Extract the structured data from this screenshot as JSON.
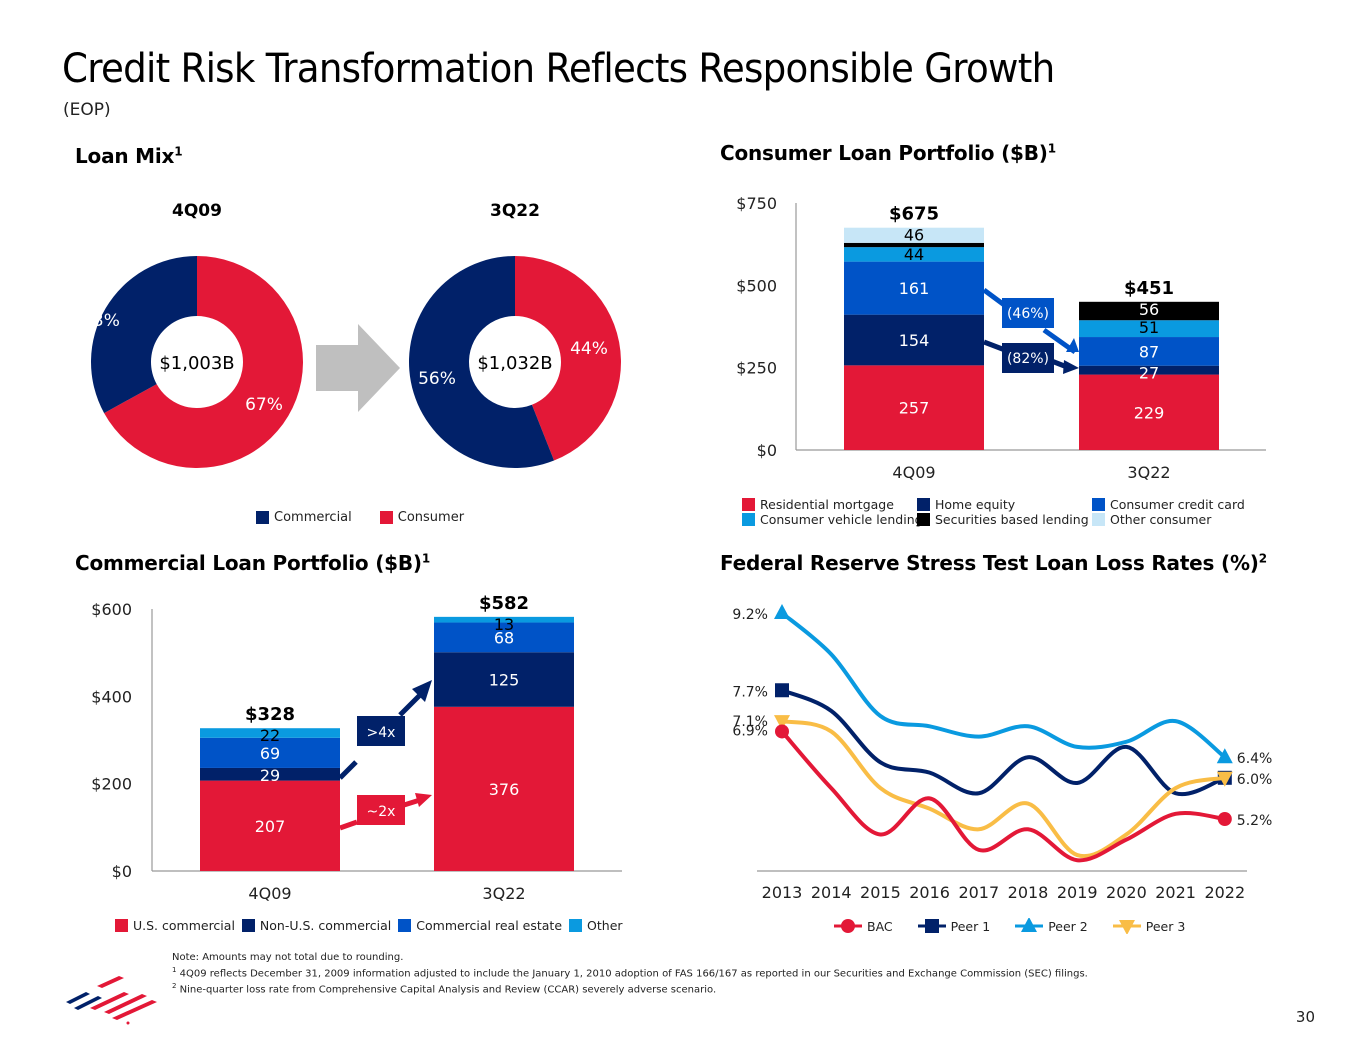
{
  "page": {
    "title": "Credit Risk Transformation Reflects Responsible Growth",
    "subtitle": "(EOP)",
    "page_number": "30",
    "notes": {
      "note": "Note: Amounts may not total due to rounding.",
      "fn1_marker": "1",
      "fn1": "4Q09 reflects December 31, 2009 information adjusted to include the January 1, 2010 adoption of FAS 166/167 as reported in our Securities and Exchange Commission (SEC) filings.",
      "fn2_marker": "2",
      "fn2": "Nine-quarter loss rate from Comprehensive Capital Analysis and Review (CCAR) severely adverse scenario."
    }
  },
  "colors": {
    "red": "#e31837",
    "navy": "#012169",
    "blue": "#0053c7",
    "sky": "#0a9ae0",
    "black": "#000000",
    "pale": "#c7e6f7",
    "peer3": "#f9bd46",
    "gray_arrow": "#bfbfbf"
  },
  "chart_data": [
    {
      "id": "loan_mix",
      "type": "pie",
      "title": "Loan Mix",
      "title_sup": "1",
      "legend": [
        "Commercial",
        "Consumer"
      ],
      "legend_position": "bottom",
      "donuts": [
        {
          "label": "4Q09",
          "center_text": "$1,003B",
          "slices": [
            {
              "name": "Commercial",
              "value": 33,
              "label": "33%"
            },
            {
              "name": "Consumer",
              "value": 67,
              "label": "67%"
            }
          ]
        },
        {
          "label": "3Q22",
          "center_text": "$1,032B",
          "slices": [
            {
              "name": "Commercial",
              "value": 56,
              "label": "56%"
            },
            {
              "name": "Consumer",
              "value": 44,
              "label": "44%"
            }
          ]
        }
      ]
    },
    {
      "id": "consumer",
      "type": "bar",
      "stacked": true,
      "title": "Consumer Loan Portfolio ($B)",
      "title_sup": "1",
      "categories": [
        "4Q09",
        "3Q22"
      ],
      "totals": [
        "$675",
        "$451"
      ],
      "yticks": [
        "$0",
        "$250",
        "$500",
        "$750"
      ],
      "ylim": [
        0,
        750
      ],
      "series": [
        {
          "name": "Residential mortgage",
          "color": "red",
          "values": [
            257,
            229
          ],
          "labels": [
            "257",
            "229"
          ],
          "label_color": "#ffffff"
        },
        {
          "name": "Home equity",
          "color": "navy",
          "values": [
            154,
            27
          ],
          "labels": [
            "154",
            "27"
          ],
          "label_color": "#ffffff"
        },
        {
          "name": "Consumer credit card",
          "color": "blue",
          "values": [
            161,
            87
          ],
          "labels": [
            "161",
            "87"
          ],
          "label_color": "#ffffff"
        },
        {
          "name": "Consumer vehicle lending",
          "color": "sky",
          "values": [
            44,
            51
          ],
          "labels": [
            "44",
            "51"
          ],
          "label_color": "#000000"
        },
        {
          "name": "Securities based lending",
          "color": "black",
          "values": [
            13,
            56
          ],
          "labels": [
            "",
            "56"
          ],
          "label_color": "#ffffff"
        },
        {
          "name": "Other consumer",
          "color": "pale",
          "values": [
            46,
            0
          ],
          "labels": [
            "46",
            ""
          ],
          "label_color": "#000000"
        }
      ],
      "annotations": [
        {
          "text": "(46%)",
          "series": "Consumer credit card"
        },
        {
          "text": "(82%)",
          "series": "Home equity"
        }
      ],
      "legend_order": [
        "Residential mortgage",
        "Home equity",
        "Consumer credit card",
        "Consumer vehicle lending",
        "Securities based lending",
        "Other consumer"
      ],
      "legend_position": "bottom"
    },
    {
      "id": "commercial",
      "type": "bar",
      "stacked": true,
      "title": "Commercial Loan Portfolio ($B)",
      "title_sup": "1",
      "categories": [
        "4Q09",
        "3Q22"
      ],
      "totals": [
        "$328",
        "$582"
      ],
      "yticks": [
        "$0",
        "$200",
        "$400",
        "$600"
      ],
      "ylim": [
        0,
        600
      ],
      "series": [
        {
          "name": "U.S. commercial",
          "color": "red",
          "values": [
            207,
            376
          ],
          "labels": [
            "207",
            "376"
          ],
          "label_color": "#ffffff"
        },
        {
          "name": "Non-U.S. commercial",
          "color": "navy",
          "values": [
            29,
            125
          ],
          "labels": [
            "29",
            "125"
          ],
          "label_color": "#ffffff"
        },
        {
          "name": "Commercial real estate",
          "color": "blue",
          "values": [
            69,
            68
          ],
          "labels": [
            "69",
            "68"
          ],
          "label_color": "#ffffff"
        },
        {
          "name": "Other",
          "color": "sky",
          "values": [
            22,
            13
          ],
          "labels": [
            "22",
            "13"
          ],
          "label_color": "#000000"
        }
      ],
      "annotations": [
        {
          "text": ">4x",
          "series": "Non-U.S. commercial"
        },
        {
          "text": "~2x",
          "series": "U.S. commercial"
        }
      ],
      "legend_position": "bottom"
    },
    {
      "id": "stress",
      "type": "line",
      "title": "Federal Reserve Stress Test Loan Loss Rates (%)",
      "title_sup": "2",
      "x": [
        "2013",
        "2014",
        "2015",
        "2016",
        "2017",
        "2018",
        "2019",
        "2020",
        "2021",
        "2022"
      ],
      "ylim": [
        4.0,
        9.5
      ],
      "series": [
        {
          "name": "BAC",
          "color": "red",
          "marker": "circle",
          "values": [
            6.9,
            5.8,
            4.9,
            5.6,
            4.6,
            5.0,
            4.4,
            4.8,
            5.3,
            5.2
          ],
          "start_label": "6.9%",
          "end_label": "5.2%"
        },
        {
          "name": "Peer 1",
          "color": "navy",
          "marker": "square",
          "values": [
            7.7,
            7.3,
            6.3,
            6.1,
            5.7,
            6.4,
            5.9,
            6.6,
            5.7,
            6.0
          ],
          "start_label": "7.7%",
          "end_label": "6.0%"
        },
        {
          "name": "Peer 2",
          "color": "sky",
          "marker": "triangle-up",
          "values": [
            9.2,
            8.4,
            7.2,
            7.0,
            6.8,
            7.0,
            6.6,
            6.7,
            7.1,
            6.4
          ],
          "start_label": "9.2%",
          "end_label": "6.4%"
        },
        {
          "name": "Peer 3",
          "color": "peer3",
          "marker": "triangle-down",
          "values": [
            7.1,
            6.9,
            5.8,
            5.4,
            5.0,
            5.5,
            4.5,
            4.9,
            5.8,
            6.0
          ],
          "start_label": "7.1%",
          "end_label": ""
        }
      ],
      "legend_position": "bottom",
      "grid": false
    }
  ]
}
